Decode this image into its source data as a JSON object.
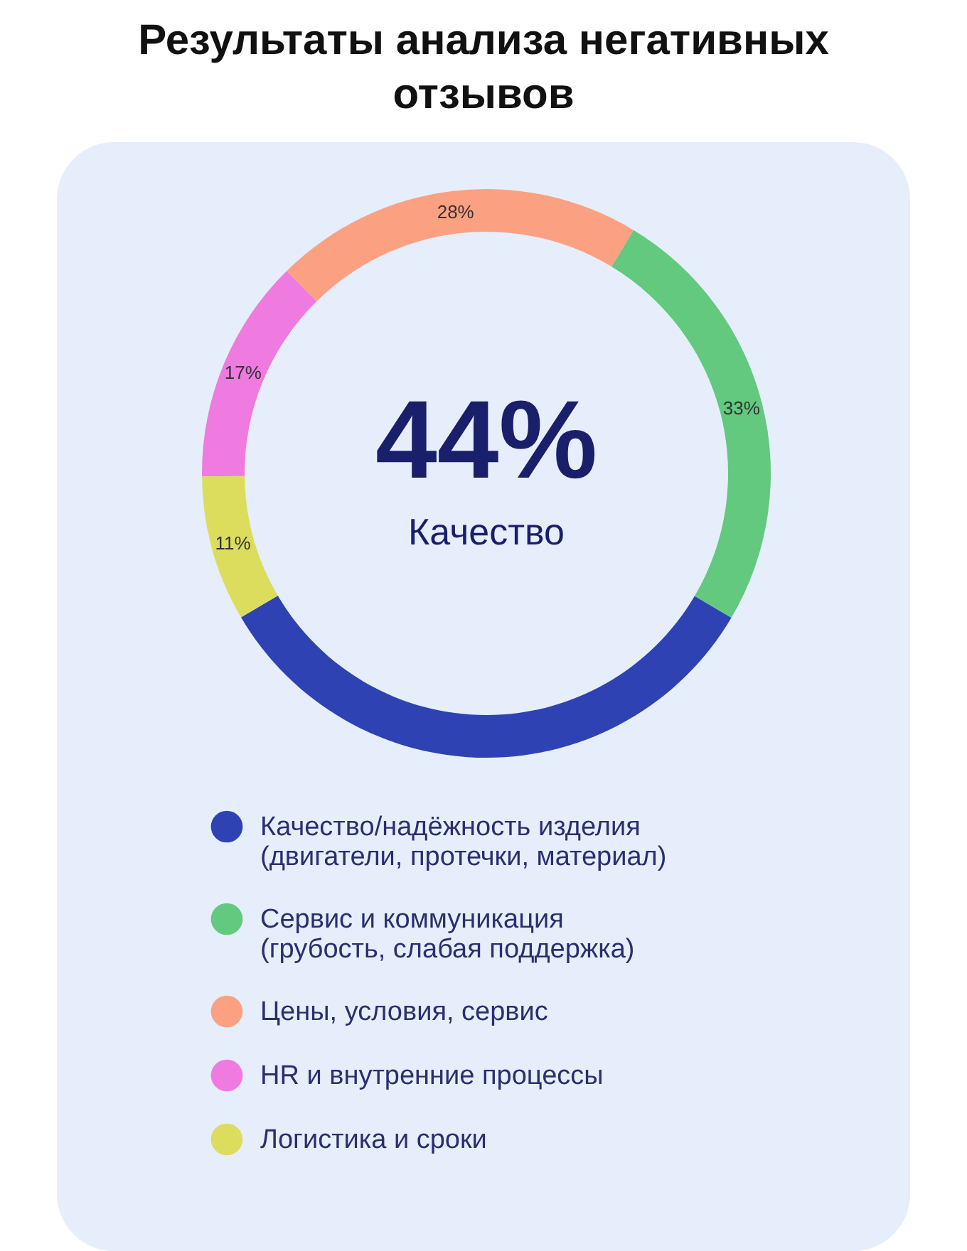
{
  "chart_data": {
    "type": "donut",
    "title": "Результаты анализа негативных отзывов",
    "categories": [
      "Качество/надёжность изделия (двигатели, протечки, материал)",
      "Сервис и коммуникация (грубость, слабая поддержка)",
      "Цены, условия, сервис",
      "HR и внутренние процессы",
      "Логистика и сроки"
    ],
    "values": [
      44,
      33,
      28,
      17,
      11
    ],
    "colors": [
      "#2f42b3",
      "#62c97e",
      "#fca082",
      "#ef7ae0",
      "#dcdd5c"
    ],
    "value_labels": [
      null,
      "33%",
      "28%",
      "17%",
      "11%"
    ],
    "annotations": [
      "44%",
      "Качество"
    ],
    "legend": "bottom"
  }
}
